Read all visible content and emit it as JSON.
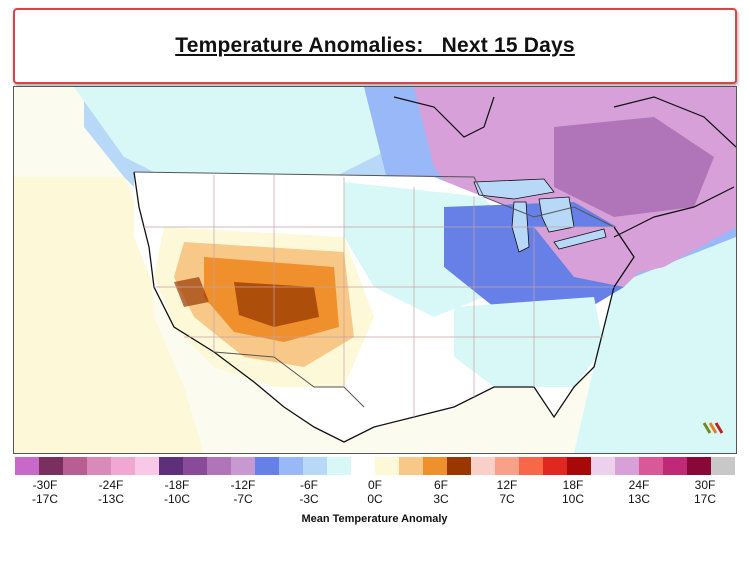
{
  "title": "Temperature Anomalies:   Next 15 Days",
  "legend": {
    "title": "Mean Temperature Anomaly",
    "colors": [
      "#c868c8",
      "#7a2f5e",
      "#b85e92",
      "#d98ab8",
      "#f0a8d2",
      "#f8c8e6",
      "#5e2f7a",
      "#8a4a9a",
      "#b075b8",
      "#c898d0",
      "#6680e8",
      "#98b8f8",
      "#b8d8f8",
      "#d8f8f8",
      "#ffffff",
      "#fcf8d8",
      "#f8c888",
      "#f0902c",
      "#983800",
      "#f8d0c8",
      "#f8a088",
      "#f86848",
      "#e02820",
      "#a80808",
      "#ecd0ec",
      "#d8a0d8",
      "#d85898",
      "#c02878",
      "#880838",
      "#c8c8c8"
    ],
    "ticks": [
      {
        "f": "-30F",
        "c": "-17C"
      },
      {
        "f": "-24F",
        "c": "-13C"
      },
      {
        "f": "-18F",
        "c": "-10C"
      },
      {
        "f": "-12F",
        "c": "-7C"
      },
      {
        "f": "-6F",
        "c": "-3C"
      },
      {
        "f": "0F",
        "c": "0C"
      },
      {
        "f": "6F",
        "c": "3C"
      },
      {
        "f": "12F",
        "c": "7C"
      },
      {
        "f": "18F",
        "c": "10C"
      },
      {
        "f": "24F",
        "c": "13C"
      },
      {
        "f": "30F",
        "c": "17C"
      }
    ]
  },
  "map": {
    "colors": {
      "ocean": "#fbfbf0",
      "land_neutral": "#ffffff",
      "light_cyan": "#d8f8f8",
      "cyan": "#b8d8f8",
      "light_blue": "#98b8f8",
      "blue": "#6680e8",
      "lavender": "#c898d0",
      "pink_purple": "#d8a0d8",
      "purple": "#b075b8",
      "light_yellow": "#fcf8d8",
      "light_orange": "#f8c888",
      "orange": "#f0902c",
      "brown": "#983800",
      "state_line": "#c8a0a0",
      "coast_line": "#111111"
    }
  }
}
